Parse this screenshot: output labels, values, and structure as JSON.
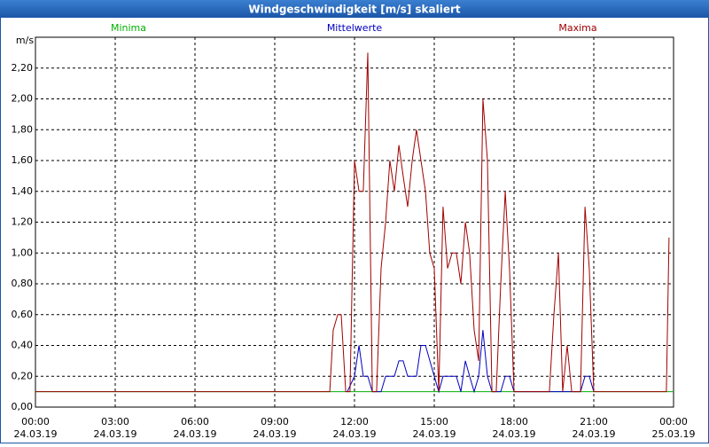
{
  "chart_data": {
    "type": "line",
    "title": "Windgeschwindigkeit [m/s] skaliert",
    "ylabel": "m/s",
    "ylim": [
      0,
      2.4
    ],
    "yticks": [
      {
        "value": 0,
        "label": "0,00"
      },
      {
        "value": 0.2,
        "label": "0,20"
      },
      {
        "value": 0.4,
        "label": "0,40"
      },
      {
        "value": 0.6,
        "label": "0,60"
      },
      {
        "value": 0.8,
        "label": "0,80"
      },
      {
        "value": 1,
        "label": "1,00"
      },
      {
        "value": 1.2,
        "label": "1,20"
      },
      {
        "value": 1.4,
        "label": "1,40"
      },
      {
        "value": 1.6,
        "label": "1,60"
      },
      {
        "value": 1.8,
        "label": "1,80"
      },
      {
        "value": 2,
        "label": "2,00"
      },
      {
        "value": 2.2,
        "label": "2,20"
      }
    ],
    "xlim": [
      0,
      24
    ],
    "xticks": [
      {
        "value": 0,
        "label": "00:00",
        "date": "24.03.19"
      },
      {
        "value": 3,
        "label": "03:00",
        "date": "24.03.19"
      },
      {
        "value": 6,
        "label": "06:00",
        "date": "24.03.19"
      },
      {
        "value": 9,
        "label": "09:00",
        "date": "24.03.19"
      },
      {
        "value": 12,
        "label": "12:00",
        "date": "24.03.19"
      },
      {
        "value": 15,
        "label": "15:00",
        "date": "24.03.19"
      },
      {
        "value": 18,
        "label": "18:00",
        "date": "24.03.19"
      },
      {
        "value": 21,
        "label": "21:00",
        "date": "24.03.19"
      },
      {
        "value": 24,
        "label": "00:00",
        "date": "25.03.19"
      }
    ],
    "grid": true,
    "series": [
      {
        "name": "Minima",
        "color": "#00b000",
        "x": [
          0,
          24
        ],
        "values": [
          0.1,
          0.1
        ]
      },
      {
        "name": "Mittelwerte",
        "color": "#0000c0",
        "x": [
          11.73,
          12.0,
          12.17,
          12.33,
          12.5,
          12.67,
          13.0,
          13.17,
          13.5,
          13.67,
          13.83,
          14.0,
          14.33,
          14.5,
          14.67,
          15.0,
          15.17,
          15.33,
          15.83,
          16.0,
          16.17,
          16.33,
          16.5,
          16.67,
          16.83,
          17.0,
          17.17,
          17.5,
          17.67,
          17.83,
          18.0,
          20.5,
          20.67,
          20.83,
          21.0
        ],
        "values": [
          0.1,
          0.2,
          0.4,
          0.2,
          0.2,
          0.1,
          0.1,
          0.2,
          0.2,
          0.3,
          0.3,
          0.2,
          0.2,
          0.4,
          0.4,
          0.2,
          0.1,
          0.2,
          0.2,
          0.1,
          0.3,
          0.2,
          0.1,
          0.2,
          0.5,
          0.2,
          0.1,
          0.1,
          0.2,
          0.2,
          0.1,
          0.1,
          0.2,
          0.2,
          0.1
        ]
      },
      {
        "name": "Maxima",
        "color": "#a00000",
        "x": [
          0,
          11.07,
          11.2,
          11.37,
          11.5,
          11.67,
          11.83,
          12.0,
          12.17,
          12.33,
          12.5,
          12.67,
          12.83,
          13.0,
          13.17,
          13.33,
          13.5,
          13.67,
          13.83,
          14.0,
          14.17,
          14.33,
          14.5,
          14.67,
          14.83,
          15.0,
          15.17,
          15.33,
          15.5,
          15.67,
          15.83,
          16.0,
          16.17,
          16.33,
          16.5,
          16.67,
          16.83,
          17.0,
          17.17,
          17.33,
          17.5,
          17.67,
          17.83,
          18.0,
          19.33,
          19.5,
          19.67,
          19.83,
          20.0,
          20.17,
          20.5,
          20.67,
          20.83,
          21.0,
          23.73,
          23.83
        ],
        "values": [
          0.1,
          0.1,
          0.5,
          0.6,
          0.6,
          0.1,
          0.1,
          1.6,
          1.4,
          1.4,
          2.3,
          0.1,
          0.1,
          0.9,
          1.2,
          1.6,
          1.4,
          1.7,
          1.5,
          1.3,
          1.6,
          1.8,
          1.6,
          1.4,
          1.0,
          0.9,
          0.1,
          1.3,
          0.9,
          1.0,
          1.0,
          0.8,
          1.2,
          1.0,
          0.5,
          0.3,
          2.0,
          1.6,
          0.1,
          0.1,
          0.8,
          1.4,
          0.9,
          0.1,
          0.1,
          0.6,
          1.0,
          0.1,
          0.4,
          0.1,
          0.1,
          1.3,
          0.9,
          0.1,
          0.1,
          1.1
        ]
      }
    ]
  }
}
